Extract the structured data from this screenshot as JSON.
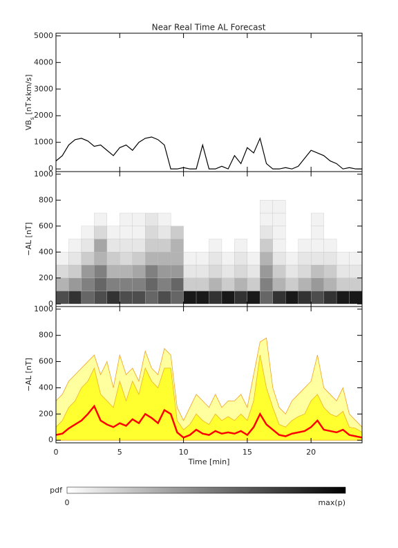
{
  "title": "Near Real Time AL Forecast",
  "colorbar": {
    "label": "pdf",
    "min_label": "0",
    "max_label": "max(p)"
  },
  "chart_data": [
    {
      "type": "line",
      "ylabel_main": "VB",
      "ylabel_sub": "s",
      "ylabel_unit": " [nT×km/s]",
      "xlim": [
        0,
        24
      ],
      "xticks": [
        0,
        5,
        10,
        15,
        20
      ],
      "ylim": [
        -100,
        5100
      ],
      "yticks": [
        0,
        1000,
        2000,
        3000,
        4000,
        5000
      ],
      "color": "#000000",
      "x": [
        0,
        0.5,
        1,
        1.5,
        2,
        2.5,
        3,
        3.5,
        4,
        4.5,
        5,
        5.5,
        6,
        6.5,
        7,
        7.5,
        8,
        8.5,
        9,
        9.5,
        10,
        10.5,
        11,
        11.5,
        12,
        12.5,
        13,
        13.5,
        14,
        14.5,
        15,
        15.5,
        16,
        16.5,
        17,
        17.5,
        18,
        18.5,
        19,
        19.5,
        20,
        20.5,
        21,
        21.5,
        22,
        22.5,
        23,
        23.5,
        24
      ],
      "values": [
        300,
        500,
        900,
        1100,
        1150,
        1050,
        850,
        900,
        700,
        500,
        800,
        900,
        700,
        1000,
        1150,
        1200,
        1100,
        900,
        0,
        0,
        50,
        0,
        0,
        900,
        0,
        0,
        100,
        0,
        500,
        200,
        800,
        600,
        1150,
        200,
        0,
        0,
        50,
        0,
        100,
        400,
        700,
        600,
        500,
        300,
        200,
        0,
        50,
        0,
        0
      ]
    },
    {
      "type": "heatmap",
      "ylabel": "−AL [nT]",
      "xlim": [
        0,
        24
      ],
      "xticks": [
        0,
        5,
        10,
        15,
        20
      ],
      "ylim": [
        -20,
        1020
      ],
      "yticks": [
        0,
        200,
        400,
        600,
        800,
        1000
      ],
      "time_bins": [
        0,
        1,
        2,
        3,
        4,
        5,
        6,
        7,
        8,
        9,
        10,
        11,
        12,
        13,
        14,
        15,
        16,
        17,
        18,
        19,
        20,
        21,
        22,
        23,
        24
      ],
      "al_bins": [
        0,
        100,
        200,
        300,
        400,
        500,
        600,
        700,
        800
      ],
      "pdf": [
        [
          0.7,
          0.8,
          0.6,
          0.7,
          0.8,
          0.7,
          0.7,
          0.6,
          0.7,
          0.6,
          0.9,
          0.9,
          0.8,
          0.9,
          0.8,
          0.9,
          0.6,
          0.8,
          0.9,
          0.8,
          0.7,
          0.8,
          0.9,
          0.9
        ],
        [
          0.3,
          0.4,
          0.5,
          0.6,
          0.5,
          0.5,
          0.5,
          0.6,
          0.5,
          0.6,
          0.2,
          0.2,
          0.3,
          0.2,
          0.3,
          0.2,
          0.5,
          0.3,
          0.2,
          0.3,
          0.4,
          0.3,
          0.2,
          0.2
        ],
        [
          0.15,
          0.2,
          0.4,
          0.5,
          0.3,
          0.3,
          0.35,
          0.5,
          0.4,
          0.4,
          0.1,
          0.1,
          0.15,
          0.1,
          0.15,
          0.1,
          0.4,
          0.2,
          0.1,
          0.15,
          0.25,
          0.2,
          0.1,
          0.1
        ],
        [
          0.05,
          0.1,
          0.2,
          0.3,
          0.2,
          0.15,
          0.2,
          0.3,
          0.3,
          0.3,
          0.05,
          0.05,
          0.1,
          0.05,
          0.1,
          0.05,
          0.3,
          0.1,
          0.05,
          0.1,
          0.1,
          0.1,
          0.05,
          0.05
        ],
        [
          0,
          0.05,
          0.1,
          0.35,
          0.1,
          0.1,
          0.1,
          0.2,
          0.2,
          0.3,
          0,
          0,
          0.05,
          0,
          0.05,
          0,
          0.2,
          0.05,
          0,
          0.05,
          0.05,
          0.05,
          0,
          0
        ],
        [
          0,
          0,
          0.05,
          0.15,
          0.05,
          0.05,
          0.05,
          0.15,
          0.1,
          0.2,
          0,
          0,
          0,
          0,
          0,
          0,
          0.1,
          0.05,
          0,
          0,
          0.05,
          0,
          0,
          0
        ],
        [
          0,
          0,
          0,
          0.05,
          0,
          0.05,
          0.05,
          0.1,
          0.05,
          0,
          0,
          0,
          0,
          0,
          0,
          0,
          0.05,
          0.05,
          0,
          0,
          0.05,
          0,
          0,
          0
        ],
        [
          0,
          0,
          0,
          0,
          0,
          0,
          0,
          0,
          0,
          0,
          0,
          0,
          0,
          0,
          0,
          0,
          0.05,
          0.05,
          0,
          0,
          0,
          0,
          0,
          0
        ]
      ]
    },
    {
      "type": "area",
      "ylabel": "−AL [nT]",
      "xlabel": "Time [min]",
      "xlim": [
        0,
        24
      ],
      "xticks": [
        0,
        5,
        10,
        15,
        20
      ],
      "ylim": [
        -20,
        1020
      ],
      "yticks": [
        0,
        200,
        400,
        600,
        800,
        1000
      ],
      "x": [
        0,
        0.5,
        1,
        1.5,
        2,
        2.5,
        3,
        3.5,
        4,
        4.5,
        5,
        5.5,
        6,
        6.5,
        7,
        7.5,
        8,
        8.5,
        9,
        9.5,
        10,
        10.5,
        11,
        11.5,
        12,
        12.5,
        13,
        13.5,
        14,
        14.5,
        15,
        15.5,
        16,
        16.5,
        17,
        17.5,
        18,
        18.5,
        19,
        19.5,
        20,
        20.5,
        21,
        21.5,
        22,
        22.5,
        23,
        23.5,
        24
      ],
      "series": [
        {
          "color": "#ffffa0",
          "edge": "#f0a020",
          "values": [
            300,
            350,
            450,
            500,
            550,
            600,
            650,
            500,
            600,
            400,
            650,
            500,
            550,
            450,
            680,
            550,
            500,
            700,
            650,
            250,
            150,
            250,
            350,
            300,
            250,
            350,
            250,
            300,
            300,
            350,
            250,
            500,
            750,
            780,
            400,
            250,
            200,
            300,
            350,
            400,
            450,
            650,
            400,
            350,
            300,
            400,
            200,
            150,
            100
          ]
        },
        {
          "color": "#ffff30",
          "edge": "#f0b020",
          "values": [
            100,
            150,
            250,
            300,
            400,
            450,
            550,
            350,
            300,
            250,
            450,
            300,
            450,
            350,
            550,
            450,
            400,
            550,
            550,
            150,
            80,
            120,
            200,
            150,
            120,
            200,
            150,
            180,
            150,
            200,
            150,
            300,
            650,
            400,
            250,
            120,
            100,
            150,
            180,
            200,
            300,
            350,
            250,
            200,
            180,
            220,
            100,
            90,
            60
          ]
        },
        {
          "color": "#ff0000",
          "values": [
            40,
            50,
            90,
            120,
            150,
            200,
            260,
            150,
            120,
            100,
            130,
            110,
            160,
            130,
            200,
            170,
            130,
            230,
            200,
            60,
            20,
            40,
            80,
            50,
            40,
            70,
            50,
            60,
            50,
            70,
            40,
            100,
            200,
            120,
            80,
            40,
            30,
            50,
            60,
            70,
            100,
            150,
            80,
            70,
            60,
            80,
            40,
            30,
            20
          ]
        }
      ]
    }
  ]
}
